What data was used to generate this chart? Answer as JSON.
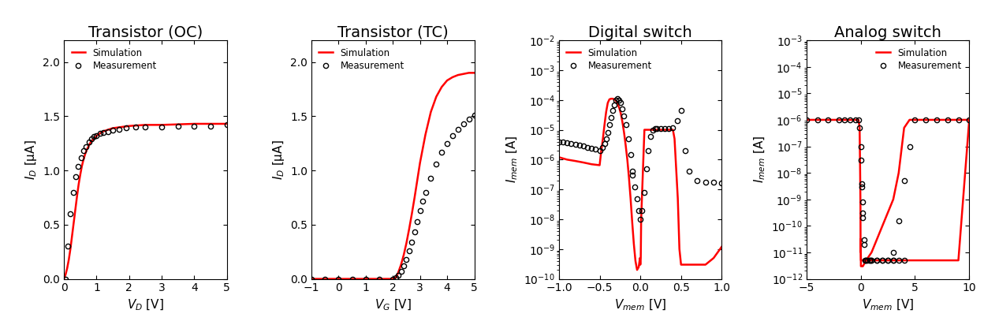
{
  "plot1": {
    "title": "Transistor (OC)",
    "xlabel": "$V_D$ [V]",
    "ylabel": "$I_D$ [μA]",
    "xlim": [
      0,
      5
    ],
    "ylim": [
      0,
      2.2
    ],
    "yticks": [
      0.0,
      0.5,
      1.0,
      1.5,
      2.0
    ],
    "xticks": [
      0,
      1,
      2,
      3,
      4,
      5
    ],
    "meas_x": [
      0.05,
      0.12,
      0.2,
      0.28,
      0.36,
      0.44,
      0.52,
      0.6,
      0.68,
      0.76,
      0.84,
      0.92,
      1.0,
      1.1,
      1.2,
      1.35,
      1.5,
      1.7,
      1.9,
      2.2,
      2.5,
      3.0,
      3.5,
      4.0,
      4.5,
      5.0
    ],
    "meas_y": [
      0.0,
      0.3,
      0.6,
      0.8,
      0.94,
      1.04,
      1.12,
      1.18,
      1.22,
      1.26,
      1.29,
      1.31,
      1.32,
      1.34,
      1.35,
      1.36,
      1.37,
      1.38,
      1.39,
      1.4,
      1.4,
      1.4,
      1.41,
      1.41,
      1.41,
      1.42
    ],
    "sim_x": [
      0.0,
      0.05,
      0.1,
      0.15,
      0.2,
      0.25,
      0.3,
      0.35,
      0.4,
      0.45,
      0.5,
      0.55,
      0.6,
      0.65,
      0.7,
      0.75,
      0.8,
      0.85,
      0.9,
      0.95,
      1.0,
      1.1,
      1.2,
      1.3,
      1.5,
      2.0,
      2.5,
      3.0,
      4.0,
      5.0
    ],
    "sim_y": [
      0.0,
      0.04,
      0.1,
      0.18,
      0.28,
      0.4,
      0.52,
      0.64,
      0.76,
      0.87,
      0.96,
      1.04,
      1.1,
      1.15,
      1.19,
      1.22,
      1.25,
      1.27,
      1.29,
      1.3,
      1.32,
      1.34,
      1.36,
      1.37,
      1.39,
      1.41,
      1.42,
      1.42,
      1.43,
      1.43
    ]
  },
  "plot2": {
    "title": "Transistor (TC)",
    "xlabel": "$V_G$ [V]",
    "ylabel": "$I_D$ [μA]",
    "xlim": [
      -1,
      5
    ],
    "ylim": [
      0,
      2.2
    ],
    "yticks": [
      0.0,
      0.5,
      1.0,
      1.5,
      2.0
    ],
    "xticks": [
      -1,
      0,
      1,
      2,
      3,
      4,
      5
    ],
    "meas_x": [
      -1.0,
      -0.5,
      0.0,
      0.5,
      1.0,
      1.5,
      2.0,
      2.1,
      2.2,
      2.3,
      2.4,
      2.5,
      2.6,
      2.7,
      2.8,
      2.9,
      3.0,
      3.1,
      3.2,
      3.4,
      3.6,
      3.8,
      4.0,
      4.2,
      4.4,
      4.6,
      4.8,
      5.0
    ],
    "meas_y": [
      0.0,
      0.0,
      0.0,
      0.0,
      0.0,
      0.0,
      0.0,
      0.01,
      0.03,
      0.07,
      0.12,
      0.18,
      0.26,
      0.34,
      0.43,
      0.53,
      0.63,
      0.72,
      0.8,
      0.93,
      1.06,
      1.17,
      1.25,
      1.32,
      1.38,
      1.43,
      1.47,
      1.51
    ],
    "sim_x": [
      -1.0,
      0.0,
      1.0,
      1.5,
      1.8,
      1.9,
      2.0,
      2.05,
      2.1,
      2.15,
      2.2,
      2.3,
      2.4,
      2.5,
      2.6,
      2.7,
      2.8,
      2.9,
      3.0,
      3.2,
      3.4,
      3.6,
      3.8,
      4.0,
      4.2,
      4.4,
      4.6,
      4.8,
      5.0
    ],
    "sim_y": [
      0.0,
      0.0,
      0.0,
      0.0,
      0.0,
      0.0,
      0.0,
      0.005,
      0.01,
      0.03,
      0.06,
      0.13,
      0.22,
      0.33,
      0.46,
      0.6,
      0.75,
      0.91,
      1.07,
      1.33,
      1.54,
      1.68,
      1.77,
      1.83,
      1.86,
      1.88,
      1.89,
      1.9,
      1.9
    ]
  },
  "plot3": {
    "title": "Digital switch",
    "xlabel": "$V_{mem}$ [V]",
    "ylabel": "$I_{mem}$ [A]",
    "xlim": [
      -1.0,
      1.0
    ],
    "ylim_log": [
      -10,
      -2
    ],
    "xticks": [
      -1.0,
      -0.5,
      0.0,
      0.5,
      1.0
    ],
    "meas_x_sweep1": [
      -1.0,
      -0.95,
      -0.9,
      -0.85,
      -0.8,
      -0.75,
      -0.7,
      -0.65,
      -0.6,
      -0.55,
      -0.5,
      -0.47,
      -0.44,
      -0.42,
      -0.4,
      -0.38,
      -0.36,
      -0.34,
      -0.32,
      -0.3,
      -0.28,
      -0.26,
      -0.24,
      -0.22,
      -0.2,
      -0.18,
      -0.15,
      -0.12,
      -0.1
    ],
    "meas_y_sweep1": [
      4e-06,
      3.8e-06,
      3.6e-06,
      3.4e-06,
      3.2e-06,
      3e-06,
      2.8e-06,
      2.6e-06,
      2.4e-06,
      2.2e-06,
      2e-06,
      2.5e-06,
      3.5e-06,
      5e-06,
      8e-06,
      1.5e-05,
      2.5e-05,
      4.5e-05,
      7e-05,
      0.0001,
      0.00011,
      0.0001,
      8e-05,
      5e-05,
      3e-05,
      1.5e-05,
      5e-06,
      1.5e-06,
      4e-07
    ],
    "meas_x_sweep2": [
      -0.1,
      -0.07,
      -0.04,
      -0.02,
      0.0,
      0.02,
      0.05,
      0.08,
      0.1,
      0.12,
      0.15,
      0.18,
      0.2,
      0.25,
      0.3,
      0.35,
      0.4,
      0.45,
      0.5,
      0.55,
      0.6,
      0.7,
      0.8,
      0.9,
      1.0
    ],
    "meas_y_sweep2": [
      3e-07,
      1.2e-07,
      5e-08,
      2e-08,
      1e-08,
      2e-08,
      8e-08,
      5e-07,
      2e-06,
      6e-06,
      1e-05,
      1.1e-05,
      1.1e-05,
      1.1e-05,
      1.1e-05,
      1.1e-05,
      1.2e-05,
      2e-05,
      4.5e-05,
      2e-06,
      4e-07,
      2e-07,
      1.8e-07,
      1.7e-07,
      1.6e-07
    ],
    "sim_x": [
      -1.0,
      -0.9,
      -0.8,
      -0.7,
      -0.6,
      -0.5,
      -0.48,
      -0.46,
      -0.44,
      -0.42,
      -0.4,
      -0.38,
      -0.36,
      -0.34,
      -0.32,
      -0.3,
      -0.28,
      -0.26,
      -0.24,
      -0.22,
      -0.2,
      -0.18,
      -0.16,
      -0.14,
      -0.12,
      -0.1,
      -0.08,
      -0.06,
      -0.04,
      -0.02,
      -0.005,
      0.0,
      0.005,
      0.01,
      0.05,
      0.1,
      0.12,
      0.14,
      0.16,
      0.18,
      0.2,
      0.25,
      0.3,
      0.35,
      0.4,
      0.42,
      0.44,
      0.46,
      0.48,
      0.5,
      0.55,
      0.6,
      0.7,
      0.8,
      0.9,
      1.0
    ],
    "sim_y": [
      1.2e-06,
      1e-06,
      9e-07,
      8e-07,
      7e-07,
      6.5e-07,
      2e-06,
      5e-06,
      1.5e-05,
      4e-05,
      8e-05,
      0.000105,
      0.00011,
      0.00011,
      0.000105,
      9.5e-05,
      7.5e-05,
      5.5e-05,
      3.5e-05,
      1.8e-05,
      8e-06,
      3e-06,
      1e-06,
      2.5e-07,
      5e-08,
      8e-09,
      1.5e-09,
      4e-10,
      2e-10,
      2.5e-10,
      5e-10,
      3e-10,
      5e-10,
      1e-08,
      1e-05,
      1e-05,
      1e-05,
      1e-05,
      1e-05,
      1e-05,
      1e-05,
      1e-05,
      1e-05,
      1e-05,
      1e-05,
      5e-06,
      5e-07,
      5e-08,
      1e-09,
      3e-10,
      3e-10,
      3e-10,
      3e-10,
      3e-10,
      5e-10,
      1.2e-09
    ]
  },
  "plot4": {
    "title": "Analog switch",
    "xlabel": "$V_{mem}$ [V]",
    "ylabel": "$I_{mem}$ [A]",
    "xlim": [
      -5,
      10
    ],
    "ylim_log": [
      -12,
      -3
    ],
    "xticks": [
      -5,
      0,
      5,
      10
    ],
    "meas_x_down": [
      -5.0,
      -4.0,
      -3.0,
      -2.0,
      -1.5,
      -1.0,
      -0.5,
      -0.2,
      -0.1,
      0.0,
      0.05,
      0.1,
      0.15,
      0.2,
      0.3,
      0.4,
      0.5,
      0.6,
      0.8,
      1.0,
      1.5,
      2.0,
      2.5,
      3.0
    ],
    "meas_y_down": [
      1e-06,
      1e-06,
      1e-06,
      1e-06,
      1e-06,
      1e-06,
      1e-06,
      1e-06,
      5e-07,
      1e-07,
      3e-08,
      4e-09,
      8e-10,
      2e-10,
      2e-11,
      5e-12,
      5e-12,
      5e-12,
      5e-12,
      5e-12,
      5e-12,
      5e-12,
      5e-12,
      5e-12
    ],
    "meas_x_up": [
      3.0,
      3.5,
      4.0,
      4.5,
      5.0,
      6.0,
      7.0,
      8.0,
      9.0,
      10.0
    ],
    "meas_y_up": [
      1e-11,
      1.5e-10,
      5e-09,
      1e-07,
      1e-06,
      1e-06,
      1e-06,
      1e-06,
      1e-06,
      1e-06
    ],
    "meas_x_mid": [
      0.1,
      0.2,
      0.3,
      0.5,
      0.8,
      1.0,
      1.5,
      2.0,
      2.5,
      3.0,
      3.5,
      4.0
    ],
    "meas_y_mid": [
      3e-09,
      3e-10,
      3e-11,
      5e-12,
      5e-12,
      5e-12,
      5e-12,
      5e-12,
      5e-12,
      5e-12,
      5e-12,
      5e-12
    ],
    "sim_x_left": [
      -5.0,
      -4.0,
      -3.0,
      -2.0,
      -1.0,
      -0.5,
      -0.2,
      -0.1,
      -0.05,
      -0.02,
      -0.01,
      0.0
    ],
    "sim_y_left": [
      1e-06,
      1e-06,
      1e-06,
      1e-06,
      1e-06,
      1e-06,
      1e-06,
      5e-07,
      1e-08,
      5e-10,
      1e-11,
      3e-11
    ],
    "sim_x_down": [
      0.0,
      0.01,
      0.02,
      0.05,
      0.1,
      0.15,
      0.2,
      0.3,
      0.5,
      0.8,
      1.0,
      1.5,
      2.0,
      2.5,
      3.0,
      3.5,
      4.0,
      4.5,
      5.0,
      6.0,
      7.0,
      8.0,
      9.0,
      10.0
    ],
    "sim_y_down": [
      3e-11,
      1e-11,
      5e-12,
      5e-12,
      5e-12,
      5e-12,
      5e-12,
      5e-12,
      5e-12,
      5e-12,
      5e-12,
      5e-12,
      5e-12,
      5e-12,
      5e-12,
      5e-12,
      5e-12,
      5e-12,
      5e-12,
      5e-12,
      5e-12,
      5e-12,
      5e-12,
      1e-06
    ],
    "sim_x_up": [
      0.0,
      0.01,
      0.02,
      0.05,
      0.1,
      0.2,
      0.5,
      1.0,
      2.0,
      3.0,
      3.5,
      4.0,
      4.5,
      5.0,
      6.0,
      7.0,
      8.0,
      9.0,
      10.0
    ],
    "sim_y_up": [
      3e-11,
      1e-11,
      3e-12,
      3e-12,
      3e-12,
      3e-12,
      5e-12,
      1e-11,
      1e-10,
      1e-09,
      1e-08,
      5e-07,
      1e-06,
      1e-06,
      1e-06,
      1e-06,
      1e-06,
      1e-06,
      1e-06
    ]
  },
  "sim_color": "#ff0000",
  "meas_color": "#000000",
  "title_fontsize": 14,
  "label_fontsize": 11,
  "tick_fontsize": 10
}
